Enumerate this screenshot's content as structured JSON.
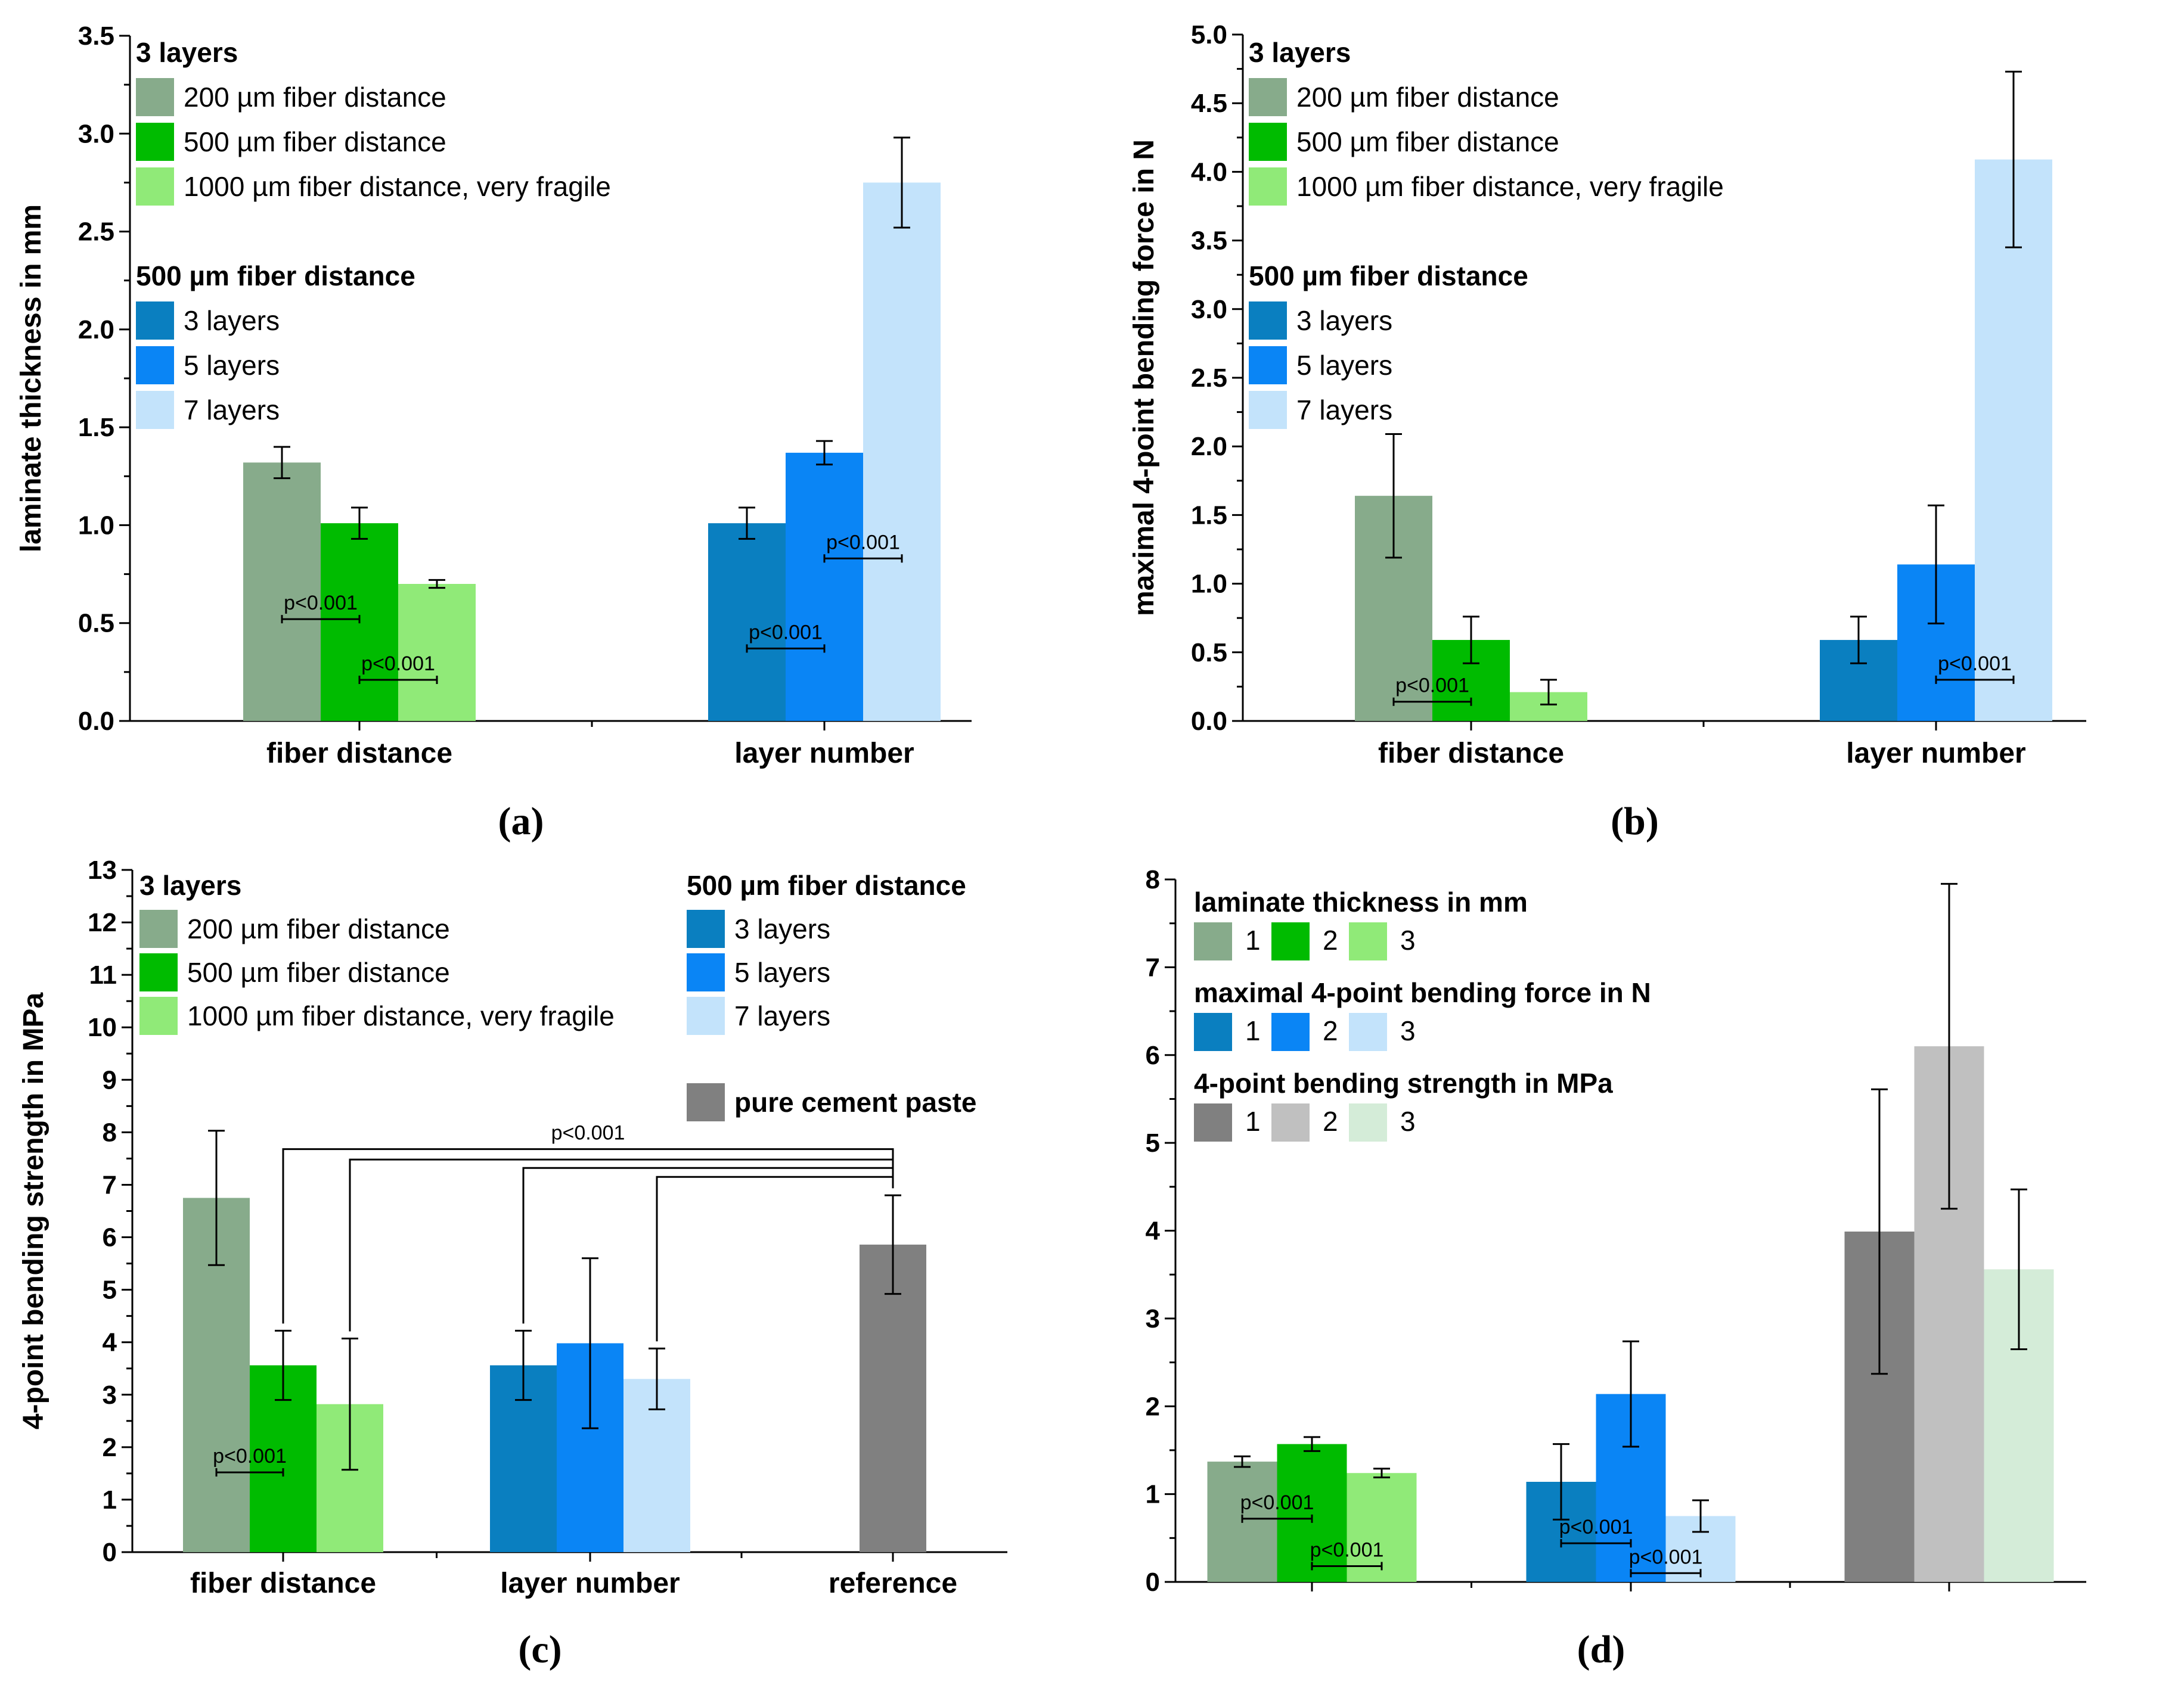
{
  "colors": {
    "fd200": "#87ab8b",
    "fd500": "#00bb00",
    "fd1000": "#90ea78",
    "l3": "#0a7fc0",
    "l5": "#0a85f5",
    "l7": "#c3e3fb",
    "cement": "#808080",
    "cement2": "#c0c0c0",
    "cement3": "#d4ecd8"
  },
  "chart_data": [
    {
      "id": "a",
      "type": "bar",
      "panel_label": "(a)",
      "ylabel": "laminate thickness in mm",
      "ylim": [
        0,
        3.5
      ],
      "yticks": [
        "0.0",
        "0.5",
        "1.0",
        "1.5",
        "2.0",
        "2.5",
        "3.0",
        "3.5"
      ],
      "categories": [
        "fiber distance",
        "layer number"
      ],
      "groups": [
        {
          "bars": [
            {
              "key": "fd200",
              "value": 1.32,
              "err": 0.08
            },
            {
              "key": "fd500",
              "value": 1.01,
              "err": 0.08
            },
            {
              "key": "fd1000",
              "value": 0.7,
              "err": 0.02
            }
          ]
        },
        {
          "bars": [
            {
              "key": "l3",
              "value": 1.01,
              "err": 0.08
            },
            {
              "key": "l5",
              "value": 1.37,
              "err": 0.06
            },
            {
              "key": "l7",
              "value": 2.75,
              "err": 0.23
            }
          ]
        }
      ],
      "significance": [
        {
          "group": 0,
          "from": 0,
          "to": 1,
          "y": 0.52,
          "label": "p<0.001"
        },
        {
          "group": 0,
          "from": 1,
          "to": 2,
          "y": 0.21,
          "label": "p<0.001"
        },
        {
          "group": 1,
          "from": 0,
          "to": 1,
          "y": 0.37,
          "label": "p<0.001"
        },
        {
          "group": 1,
          "from": 1,
          "to": 2,
          "y": 0.83,
          "label": "p<0.001"
        }
      ],
      "legend": [
        {
          "heading": "3 layers",
          "items": [
            {
              "key": "fd200",
              "label": "200 µm fiber distance"
            },
            {
              "key": "fd500",
              "label": "500 µm fiber distance"
            },
            {
              "key": "fd1000",
              "label": "1000 µm fiber distance, very fragile"
            }
          ]
        },
        {
          "heading": "500 µm fiber distance",
          "items": [
            {
              "key": "l3",
              "label": "3 layers"
            },
            {
              "key": "l5",
              "label": "5 layers"
            },
            {
              "key": "l7",
              "label": "7 layers"
            }
          ]
        }
      ]
    },
    {
      "id": "b",
      "type": "bar",
      "panel_label": "(b)",
      "ylabel": "maximal 4-point bending force in N",
      "ylim": [
        0,
        5.0
      ],
      "yticks": [
        "0.0",
        "0.5",
        "1.0",
        "1.5",
        "2.0",
        "2.5",
        "3.0",
        "3.5",
        "4.0",
        "4.5",
        "5.0"
      ],
      "categories": [
        "fiber distance",
        "layer number"
      ],
      "groups": [
        {
          "bars": [
            {
              "key": "fd200",
              "value": 1.64,
              "err": 0.45
            },
            {
              "key": "fd500",
              "value": 0.59,
              "err": 0.17
            },
            {
              "key": "fd1000",
              "value": 0.21,
              "err": 0.09
            }
          ]
        },
        {
          "bars": [
            {
              "key": "l3",
              "value": 0.59,
              "err": 0.17
            },
            {
              "key": "l5",
              "value": 1.14,
              "err": 0.43
            },
            {
              "key": "l7",
              "value": 4.09,
              "err": 0.64
            }
          ]
        }
      ],
      "significance": [
        {
          "group": 0,
          "from": 0,
          "to": 1,
          "y": 0.14,
          "label": "p<0.001"
        },
        {
          "group": 1,
          "from": 1,
          "to": 2,
          "y": 0.3,
          "label": "p<0.001"
        }
      ],
      "legend": [
        {
          "heading": "3 layers",
          "items": [
            {
              "key": "fd200",
              "label": "200 µm fiber distance"
            },
            {
              "key": "fd500",
              "label": "500 µm fiber distance"
            },
            {
              "key": "fd1000",
              "label": "1000 µm fiber distance, very fragile"
            }
          ]
        },
        {
          "heading": "500 µm fiber distance",
          "items": [
            {
              "key": "l3",
              "label": "3 layers"
            },
            {
              "key": "l5",
              "label": "5 layers"
            },
            {
              "key": "l7",
              "label": "7 layers"
            }
          ]
        }
      ]
    },
    {
      "id": "c",
      "type": "bar",
      "panel_label": "(c)",
      "ylabel": "4-point bending strength in MPa",
      "ylim": [
        0,
        13
      ],
      "yticks": [
        "0",
        "1",
        "2",
        "3",
        "4",
        "5",
        "6",
        "7",
        "8",
        "9",
        "10",
        "11",
        "12",
        "13"
      ],
      "categories": [
        "fiber distance",
        "layer number",
        "reference"
      ],
      "groups": [
        {
          "bars": [
            {
              "key": "fd200",
              "value": 6.75,
              "err": 1.28
            },
            {
              "key": "fd500",
              "value": 3.56,
              "err": 0.66
            },
            {
              "key": "fd1000",
              "value": 2.82,
              "err": 1.25
            }
          ]
        },
        {
          "bars": [
            {
              "key": "l3",
              "value": 3.56,
              "err": 0.66
            },
            {
              "key": "l5",
              "value": 3.98,
              "err": 1.62
            },
            {
              "key": "l7",
              "value": 3.3,
              "err": 0.58
            }
          ]
        },
        {
          "bars": [
            {
              "key": "cement",
              "value": 5.86,
              "err": 0.94
            }
          ]
        }
      ],
      "significance": [
        {
          "group": 0,
          "from": 0,
          "to": 1,
          "y": 1.52,
          "label": "p<0.001"
        }
      ],
      "brackets": {
        "label": "p<0.001",
        "target": {
          "group": 2,
          "bar": 0
        },
        "levels": [
          7.68,
          7.48,
          7.32,
          7.15
        ],
        "sources": [
          {
            "group": 0,
            "bar": 1
          },
          {
            "group": 0,
            "bar": 2
          },
          {
            "group": 1,
            "bar": 0
          },
          {
            "group": 1,
            "bar": 2
          }
        ]
      },
      "legend": [
        {
          "heading": "3 layers",
          "items": [
            {
              "key": "fd200",
              "label": "200 µm fiber distance"
            },
            {
              "key": "fd500",
              "label": "500 µm fiber distance"
            },
            {
              "key": "fd1000",
              "label": "1000 µm fiber distance, very fragile"
            }
          ]
        },
        {
          "heading": "500 µm fiber distance",
          "items": [
            {
              "key": "l3",
              "label": "3 layers"
            },
            {
              "key": "l5",
              "label": "5 layers"
            },
            {
              "key": "l7",
              "label": "7 layers"
            }
          ]
        },
        {
          "heading": "",
          "items": [
            {
              "key": "cement",
              "label": "pure cement paste",
              "bold": true
            }
          ]
        }
      ]
    },
    {
      "id": "d",
      "type": "bar",
      "panel_label": "(d)",
      "ylabel": "",
      "ylim": [
        0,
        8
      ],
      "yticks": [
        "0",
        "1",
        "2",
        "3",
        "4",
        "5",
        "6",
        "7",
        "8"
      ],
      "categories": [
        "",
        "",
        ""
      ],
      "groups": [
        {
          "bars": [
            {
              "key": "fd200",
              "value": 1.37,
              "err": 0.06
            },
            {
              "key": "fd500",
              "value": 1.57,
              "err": 0.08
            },
            {
              "key": "fd1000",
              "value": 1.24,
              "err": 0.05
            }
          ]
        },
        {
          "bars": [
            {
              "key": "l3",
              "value": 1.14,
              "err": 0.43
            },
            {
              "key": "l5",
              "value": 2.14,
              "err": 0.6
            },
            {
              "key": "l7",
              "value": 0.75,
              "err": 0.18
            }
          ]
        },
        {
          "bars": [
            {
              "key": "cement",
              "value": 3.99,
              "err": 1.62
            },
            {
              "key": "cement2",
              "value": 6.1,
              "err": 1.85
            },
            {
              "key": "cement3",
              "value": 3.56,
              "err": 0.91
            }
          ]
        }
      ],
      "significance": [
        {
          "group": 0,
          "from": 0,
          "to": 1,
          "y": 0.72,
          "label": "p<0.001"
        },
        {
          "group": 0,
          "from": 1,
          "to": 2,
          "y": 0.18,
          "label": "p<0.001"
        },
        {
          "group": 1,
          "from": 0,
          "to": 1,
          "y": 0.44,
          "label": "p<0.001"
        },
        {
          "group": 1,
          "from": 1,
          "to": 2,
          "y": 0.1,
          "label": "p<0.001"
        }
      ],
      "legend": [
        {
          "heading": "laminate thickness in mm",
          "row": true,
          "items": [
            {
              "key": "fd200",
              "label": "1"
            },
            {
              "key": "fd500",
              "label": "2"
            },
            {
              "key": "fd1000",
              "label": "3"
            }
          ]
        },
        {
          "heading": "maximal 4-point bending force in N",
          "row": true,
          "items": [
            {
              "key": "l3",
              "label": "1"
            },
            {
              "key": "l5",
              "label": "2"
            },
            {
              "key": "l7",
              "label": "3"
            }
          ]
        },
        {
          "heading": "4-point bending strength in MPa",
          "row": true,
          "items": [
            {
              "key": "cement",
              "label": "1"
            },
            {
              "key": "cement2",
              "label": "2"
            },
            {
              "key": "cement3",
              "label": "3"
            }
          ]
        }
      ]
    }
  ]
}
